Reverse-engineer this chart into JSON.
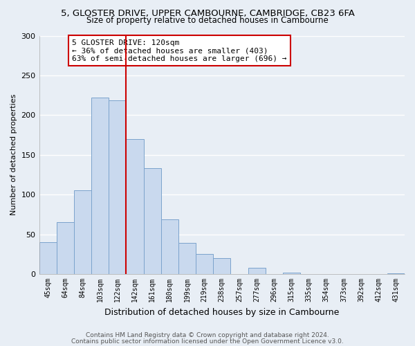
{
  "title1": "5, GLOSTER DRIVE, UPPER CAMBOURNE, CAMBRIDGE, CB23 6FA",
  "title2": "Size of property relative to detached houses in Cambourne",
  "xlabel": "Distribution of detached houses by size in Cambourne",
  "ylabel": "Number of detached properties",
  "bar_labels": [
    "45sqm",
    "64sqm",
    "84sqm",
    "103sqm",
    "122sqm",
    "142sqm",
    "161sqm",
    "180sqm",
    "199sqm",
    "219sqm",
    "238sqm",
    "257sqm",
    "277sqm",
    "296sqm",
    "315sqm",
    "335sqm",
    "354sqm",
    "373sqm",
    "392sqm",
    "412sqm",
    "431sqm"
  ],
  "bar_values": [
    40,
    65,
    105,
    222,
    219,
    170,
    133,
    69,
    39,
    25,
    20,
    0,
    8,
    0,
    2,
    0,
    0,
    0,
    0,
    0,
    1
  ],
  "bar_color": "#c9d9ee",
  "bar_edge_color": "#7ba3cc",
  "vline_index": 4,
  "vline_color": "#cc0000",
  "annotation_text": "5 GLOSTER DRIVE: 120sqm\n← 36% of detached houses are smaller (403)\n63% of semi-detached houses are larger (696) →",
  "annotation_box_color": "#ffffff",
  "annotation_box_edge": "#cc0000",
  "ylim": [
    0,
    300
  ],
  "yticks": [
    0,
    50,
    100,
    150,
    200,
    250,
    300
  ],
  "footer1": "Contains HM Land Registry data © Crown copyright and database right 2024.",
  "footer2": "Contains public sector information licensed under the Open Government Licence v3.0.",
  "bg_color": "#e8eef5",
  "plot_bg_color": "#e8eef5",
  "grid_color": "#ffffff",
  "title1_fontsize": 9.5,
  "title2_fontsize": 8.5
}
